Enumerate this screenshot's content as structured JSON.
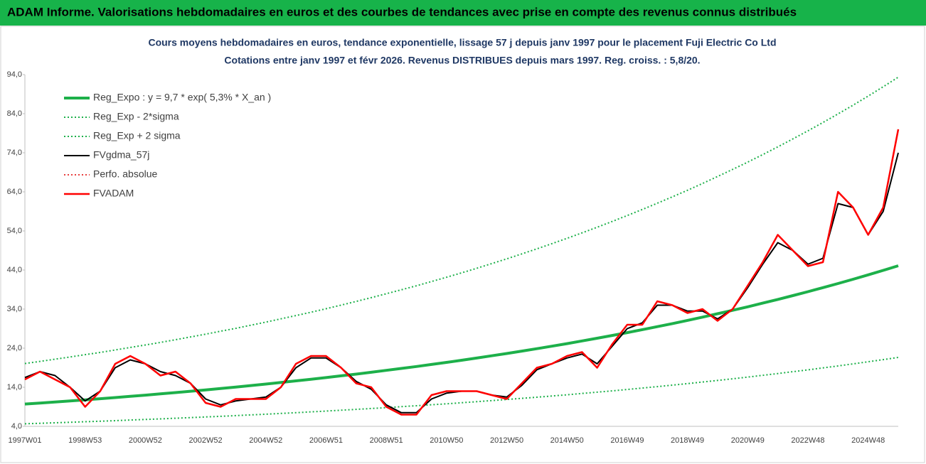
{
  "header": {
    "title": "ADAM Informe. Valorisations hebdomadaires en euros et des courbes de tendances avec prise en compte des revenus connus distribués"
  },
  "chart_data": {
    "type": "line",
    "title": "Cours moyens hebdomadaires en euros, tendance exponentielle, lissage 57 j depuis janv 1997 pour le placement Fuji Electric Co Ltd",
    "subtitle": "Cotations entre janv 1997 et févr 2026. Revenus DISTRIBUES depuis mars 1997. Reg. croiss. : 5,8/20.",
    "categories": [
      "1997W01",
      null,
      null,
      null,
      "1998W53",
      null,
      null,
      null,
      "2000W52",
      null,
      null,
      null,
      "2002W52",
      null,
      null,
      null,
      "2004W52",
      null,
      null,
      null,
      "2006W51",
      null,
      null,
      null,
      "2008W51",
      null,
      null,
      null,
      "2010W50",
      null,
      null,
      null,
      "2012W50",
      null,
      null,
      null,
      "2014W50",
      null,
      null,
      null,
      "2016W49",
      null,
      null,
      null,
      "2018W49",
      null,
      null,
      null,
      "2020W49",
      null,
      null,
      null,
      "2022W48",
      null,
      null,
      null,
      "2024W48",
      null,
      null
    ],
    "ylim": [
      4,
      94
    ],
    "yticks": [
      {
        "value": 4,
        "label": "4,0"
      },
      {
        "value": 14,
        "label": "14,0"
      },
      {
        "value": 24,
        "label": "24,0"
      },
      {
        "value": 34,
        "label": "34,0"
      },
      {
        "value": 44,
        "label": "44,0"
      },
      {
        "value": 54,
        "label": "54,0"
      },
      {
        "value": 64,
        "label": "64,0"
      },
      {
        "value": 74,
        "label": "74,0"
      },
      {
        "value": 84,
        "label": "84,0"
      },
      {
        "value": 94,
        "label": "94,0"
      }
    ],
    "grid": false,
    "legend": "top-left",
    "series": [
      {
        "name": "Reg_Expo : y = 9,7 * exp( 5,3% *  X_an )",
        "color": "#1db04a",
        "dash": "solid",
        "width": 4,
        "values": [
          9.7,
          9.96,
          10.23,
          10.5,
          10.79,
          11.07,
          11.37,
          11.68,
          11.99,
          12.31,
          12.64,
          12.98,
          13.33,
          13.69,
          14.05,
          14.43,
          14.82,
          15.22,
          15.63,
          16.04,
          16.47,
          16.92,
          17.37,
          17.84,
          18.32,
          18.81,
          19.31,
          19.83,
          20.36,
          20.91,
          21.47,
          22.05,
          22.64,
          23.25,
          23.87,
          24.51,
          25.17,
          25.85,
          26.54,
          27.25,
          27.99,
          28.74,
          29.51,
          30.3,
          31.11,
          31.95,
          32.81,
          33.69,
          34.59,
          35.52,
          36.48,
          37.46,
          38.46,
          39.49,
          40.55,
          41.64,
          42.76,
          43.91,
          45.09
        ]
      },
      {
        "name": "Reg_Exp - 2*sigma",
        "color": "#1db04a",
        "dash": "dotted",
        "width": 2,
        "values": [
          4.66,
          4.78,
          4.91,
          5.04,
          5.18,
          5.31,
          5.46,
          5.61,
          5.76,
          5.91,
          6.07,
          6.23,
          6.4,
          6.57,
          6.74,
          6.93,
          7.11,
          7.31,
          7.5,
          7.7,
          7.91,
          8.12,
          8.34,
          8.56,
          8.79,
          9.03,
          9.27,
          9.52,
          9.77,
          10.04,
          10.31,
          10.58,
          10.87,
          11.16,
          11.46,
          11.76,
          12.08,
          12.41,
          12.74,
          13.08,
          13.44,
          13.8,
          14.16,
          14.54,
          14.93,
          15.34,
          15.75,
          16.17,
          16.6,
          17.05,
          17.51,
          17.98,
          18.46,
          18.96,
          19.46,
          19.99,
          20.52,
          21.08,
          21.64
        ]
      },
      {
        "name": "Reg_Exp + 2 sigma",
        "color": "#1db04a",
        "dash": "dotted",
        "width": 2,
        "values": [
          20.08,
          20.62,
          21.18,
          21.74,
          22.34,
          22.91,
          23.54,
          24.18,
          24.82,
          25.48,
          26.16,
          26.87,
          27.59,
          28.34,
          29.08,
          29.87,
          30.68,
          31.51,
          32.35,
          33.2,
          34.09,
          35.02,
          35.96,
          36.93,
          37.92,
          38.94,
          39.97,
          41.05,
          42.15,
          43.28,
          44.44,
          45.64,
          46.86,
          48.13,
          49.41,
          50.74,
          52.1,
          53.51,
          54.94,
          56.41,
          57.94,
          59.49,
          61.09,
          62.72,
          64.4,
          66.14,
          67.92,
          69.74,
          71.6,
          73.53,
          75.51,
          77.54,
          79.61,
          81.74,
          83.94,
          86.19,
          88.51,
          90.89,
          93.34
        ]
      },
      {
        "name": "FVgdma_57j",
        "color": "#000000",
        "dash": "solid",
        "width": 2,
        "values": [
          16.5,
          18,
          17,
          14,
          10.5,
          13,
          19,
          21,
          20,
          18,
          17,
          15,
          11,
          9.5,
          10.5,
          11,
          11.5,
          14,
          19,
          21.5,
          21.5,
          19,
          15.5,
          13.5,
          9.5,
          7.5,
          7.5,
          11,
          12.5,
          13,
          13,
          12,
          11.5,
          14.5,
          18.5,
          20,
          21.5,
          22.5,
          20,
          24.5,
          29,
          30.5,
          35,
          35,
          33.5,
          33.5,
          31.5,
          34,
          39.5,
          45.5,
          51,
          49,
          45.5,
          47,
          61,
          60,
          53,
          59,
          74
        ]
      },
      {
        "name": "Perfo. absolue",
        "color": "#e00000",
        "dash": "dotted",
        "width": 1.5,
        "values": [
          16,
          18,
          16,
          14,
          9,
          13,
          20,
          22,
          20,
          17,
          18,
          15,
          10,
          9,
          11,
          11,
          11,
          14,
          20,
          22,
          22,
          19,
          15,
          14,
          9,
          7,
          7,
          12,
          13,
          13,
          13,
          12,
          11,
          15,
          19,
          20,
          22,
          23,
          19,
          25,
          30,
          30,
          36,
          35,
          33,
          34,
          31,
          34,
          40,
          46,
          53,
          49,
          45,
          46,
          64,
          60,
          53,
          60,
          80
        ]
      },
      {
        "name": "FVADAM",
        "color": "#ff0000",
        "dash": "solid",
        "width": 2.5,
        "values": [
          16,
          18,
          16,
          14,
          9,
          13,
          20,
          22,
          20,
          17,
          18,
          15,
          10,
          9,
          11,
          11,
          11,
          14,
          20,
          22,
          22,
          19,
          15,
          14,
          9,
          7,
          7,
          12,
          13,
          13,
          13,
          12,
          11,
          15,
          19,
          20,
          22,
          23,
          19,
          25,
          30,
          30,
          36,
          35,
          33,
          34,
          31,
          34,
          40,
          46,
          53,
          49,
          45,
          46,
          64,
          60,
          53,
          60,
          80
        ]
      }
    ]
  }
}
